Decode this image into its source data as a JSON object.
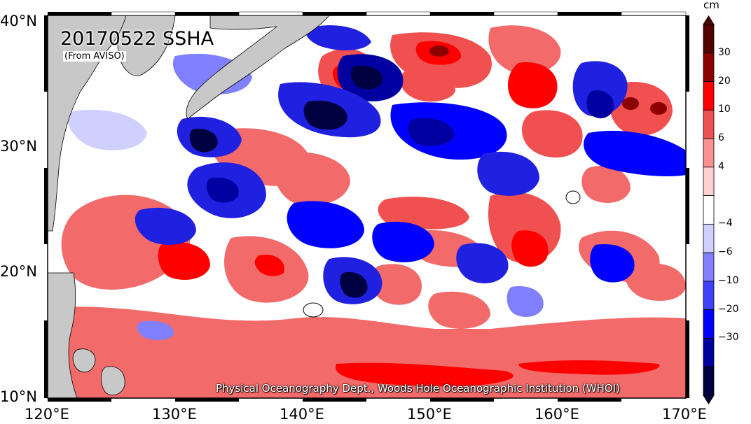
{
  "title": "20170522 SSHA",
  "subtitle": "(From AVISO)",
  "credit": "Physical Oceanography Dept., Woods Hole Oceanographic Institution (WHOI)",
  "x_axis_ticks": [
    "120°E",
    "130°E",
    "140°E",
    "150°E",
    "160°E",
    "170°E"
  ],
  "y_axis_ticks": [
    "40°N",
    "30°N",
    "20°N",
    "10°N"
  ],
  "colorbar": {
    "unit": "cm",
    "tick_labels": [
      "30",
      "20",
      "10",
      "6",
      "4",
      "−4",
      "−6",
      "−10",
      "−20",
      "−30"
    ],
    "colors": [
      "#500000",
      "#8c0000",
      "#ff0000",
      "#f05050",
      "#fa9090",
      "#ffd0d0",
      "#ffffff",
      "#d0d0ff",
      "#8080ff",
      "#4040ff",
      "#0000ff",
      "#0000a0",
      "#000040"
    ]
  },
  "colors": {
    "land": "#c8c8c8",
    "ocean_positive": "#f26a6a",
    "ocean_negative": "#2020e0"
  }
}
